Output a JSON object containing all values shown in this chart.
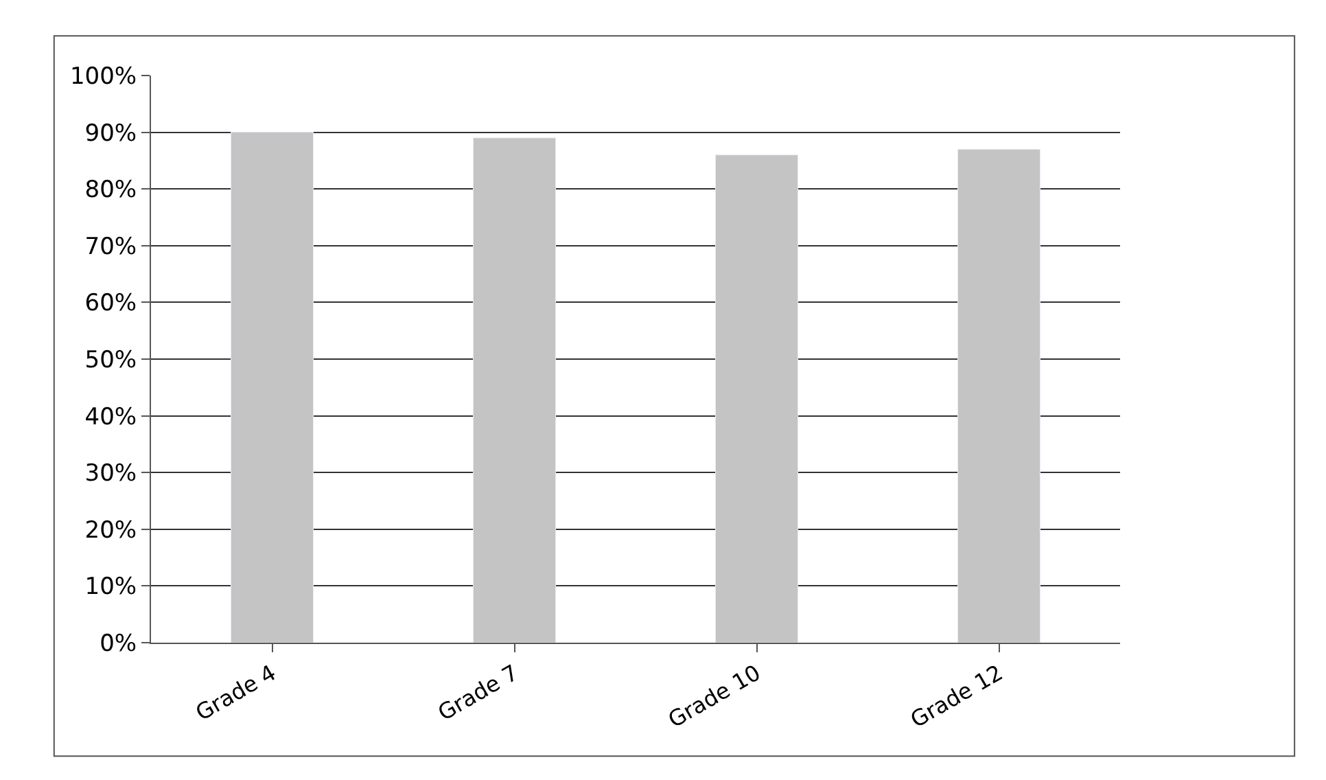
{
  "chart_data": {
    "type": "bar",
    "categories": [
      "Grade 4",
      "Grade 7",
      "Grade 10",
      "Grade 12"
    ],
    "values": [
      90,
      89,
      86,
      87
    ],
    "color": "#c4c4c4",
    "ylim": [
      0,
      100
    ],
    "yticks": [
      {
        "value": 0,
        "label": "0%"
      },
      {
        "value": 10,
        "label": "10%"
      },
      {
        "value": 20,
        "label": "20%"
      },
      {
        "value": 30,
        "label": "30%"
      },
      {
        "value": 40,
        "label": "40%"
      },
      {
        "value": 50,
        "label": "50%"
      },
      {
        "value": 60,
        "label": "60%"
      },
      {
        "value": 70,
        "label": "70%"
      },
      {
        "value": 80,
        "label": "80%"
      },
      {
        "value": 90,
        "label": "90%"
      },
      {
        "value": 100,
        "label": "100%"
      }
    ],
    "grid": "y"
  }
}
